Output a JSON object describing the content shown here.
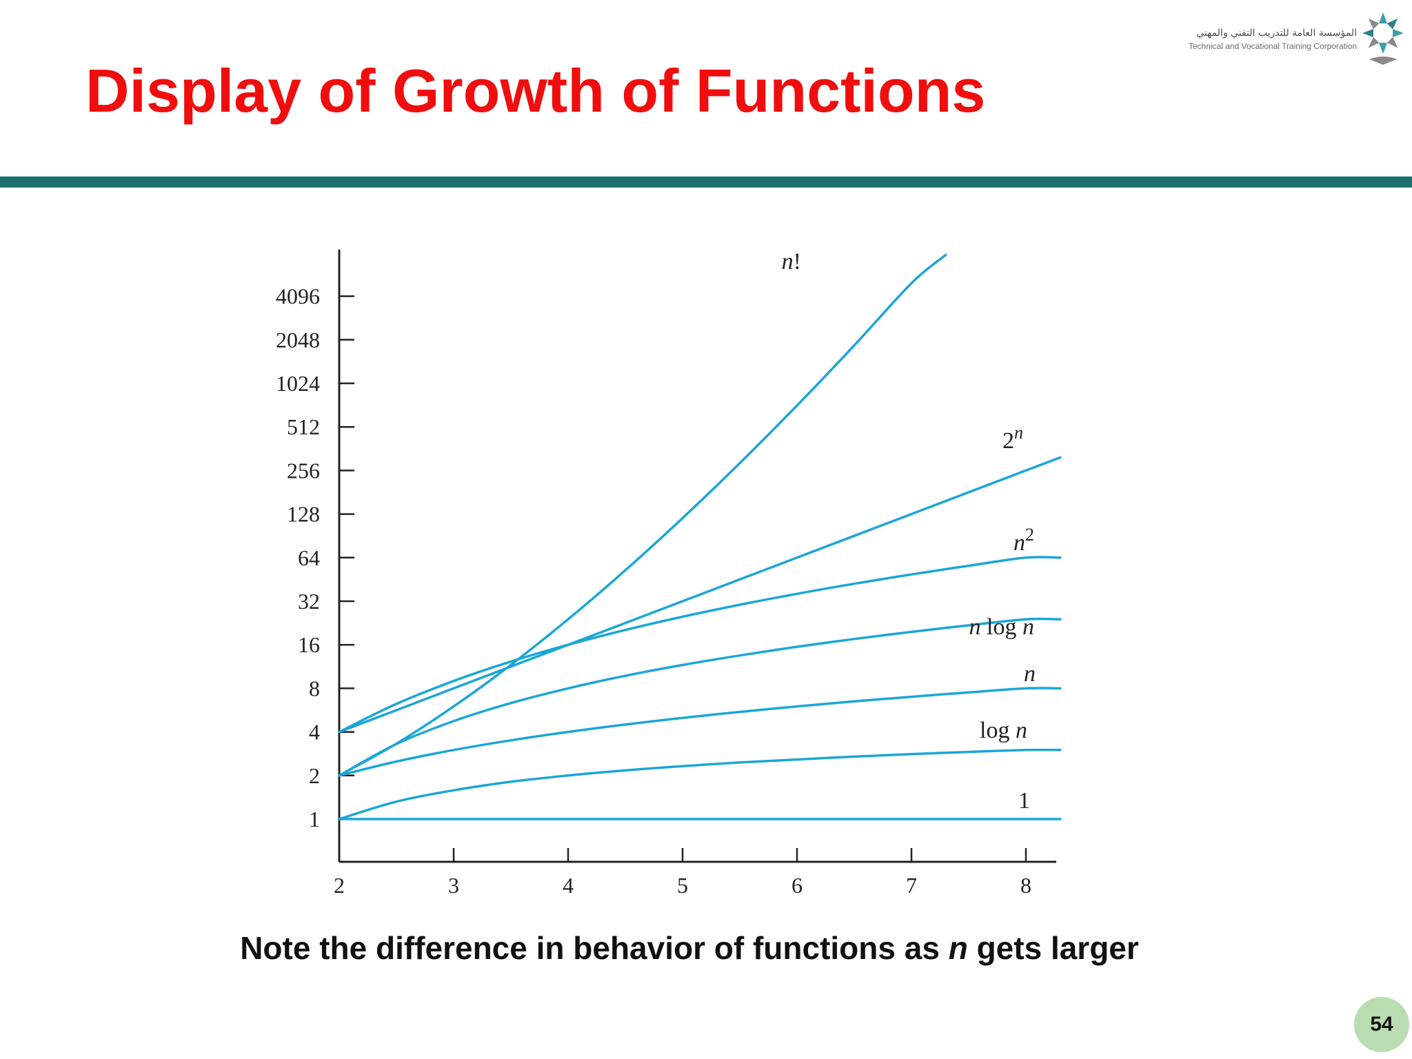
{
  "slide": {
    "title": "Display of Growth of Functions",
    "caption_before": "Note the difference in behavior of functions as ",
    "caption_var": "n",
    "caption_after": " gets larger",
    "page_number": "54"
  },
  "logo": {
    "arabic_text": "المؤسسة العامة للتدريب التقني والمهني",
    "english_text": "Technical and Vocational Training Corporation",
    "icon": "tvtc-star-logo-icon"
  },
  "colors": {
    "title": "#f00d0d",
    "rule": "#1e6e6b",
    "curve": "#1aa6d6",
    "axis": "#222222",
    "badge": "#b9dcb0"
  },
  "chart_data": {
    "type": "line",
    "title": "",
    "xlabel": "",
    "ylabel": "",
    "y_scale": "log2",
    "grid": false,
    "x_ticks": [
      2,
      3,
      4,
      5,
      6,
      7,
      8
    ],
    "y_ticks": [
      1,
      2,
      4,
      8,
      16,
      32,
      64,
      128,
      256,
      512,
      1024,
      2048,
      4096
    ],
    "xlim": [
      2,
      8.3
    ],
    "ylim": [
      1,
      8192
    ],
    "series": [
      {
        "name": "1",
        "label_parts": [
          {
            "t": "1",
            "i": false
          }
        ],
        "x": [
          2,
          3,
          4,
          5,
          6,
          7,
          8,
          8.3
        ],
        "y": [
          1,
          1,
          1,
          1,
          1,
          1,
          1,
          1
        ]
      },
      {
        "name": "log n",
        "label_parts": [
          {
            "t": "log ",
            "i": false
          },
          {
            "t": "n",
            "i": true
          }
        ],
        "x": [
          2,
          2.5,
          3,
          3.5,
          4,
          4.5,
          5,
          5.5,
          6,
          6.5,
          7,
          7.5,
          8,
          8.3
        ],
        "y": [
          1,
          1.32,
          1.58,
          1.81,
          2,
          2.17,
          2.32,
          2.46,
          2.58,
          2.7,
          2.81,
          2.91,
          3,
          3
        ]
      },
      {
        "name": "n",
        "label_parts": [
          {
            "t": "n",
            "i": true
          }
        ],
        "x": [
          2,
          2.5,
          3,
          3.5,
          4,
          4.5,
          5,
          5.5,
          6,
          6.5,
          7,
          7.5,
          8,
          8.3
        ],
        "y": [
          2,
          2.5,
          3,
          3.5,
          4,
          4.5,
          5,
          5.5,
          6,
          6.5,
          7,
          7.5,
          8,
          8
        ]
      },
      {
        "name": "n log n",
        "label_parts": [
          {
            "t": "n",
            "i": true
          },
          {
            "t": " log ",
            "i": false
          },
          {
            "t": "n",
            "i": true
          }
        ],
        "x": [
          2,
          2.5,
          3,
          3.5,
          4,
          4.5,
          5,
          5.5,
          6,
          6.5,
          7,
          7.5,
          8,
          8.3
        ],
        "y": [
          2,
          3.3,
          4.75,
          6.33,
          8,
          9.77,
          11.6,
          13.5,
          15.5,
          17.55,
          19.65,
          21.8,
          24,
          24
        ]
      },
      {
        "name": "n²",
        "label_parts": [
          {
            "t": "n",
            "i": true
          },
          {
            "t": "2",
            "i": false,
            "sup": true
          }
        ],
        "x": [
          2,
          2.5,
          3,
          3.5,
          4,
          4.5,
          5,
          5.5,
          6,
          6.5,
          7,
          7.5,
          8,
          8.3
        ],
        "y": [
          4,
          6.25,
          9,
          12.25,
          16,
          20.25,
          25,
          30.25,
          36,
          42.25,
          49,
          56.25,
          64,
          64
        ]
      },
      {
        "name": "2ⁿ",
        "label_parts": [
          {
            "t": "2",
            "i": false
          },
          {
            "t": "n",
            "i": true,
            "sup": true
          }
        ],
        "x": [
          2,
          3,
          4,
          5,
          6,
          7,
          8,
          8.3
        ],
        "y": [
          4,
          8,
          16,
          32,
          64,
          128,
          256,
          315
        ]
      },
      {
        "name": "n!",
        "label_parts": [
          {
            "t": "n",
            "i": true
          },
          {
            "t": "!",
            "i": false
          }
        ],
        "x": [
          2,
          2.5,
          3,
          3.5,
          4,
          4.5,
          5,
          5.5,
          6,
          6.5,
          7,
          7.3
        ],
        "y": [
          2,
          3.32,
          6,
          11.63,
          24,
          52.34,
          120,
          287.9,
          720,
          1871,
          5040,
          7900
        ]
      }
    ]
  }
}
